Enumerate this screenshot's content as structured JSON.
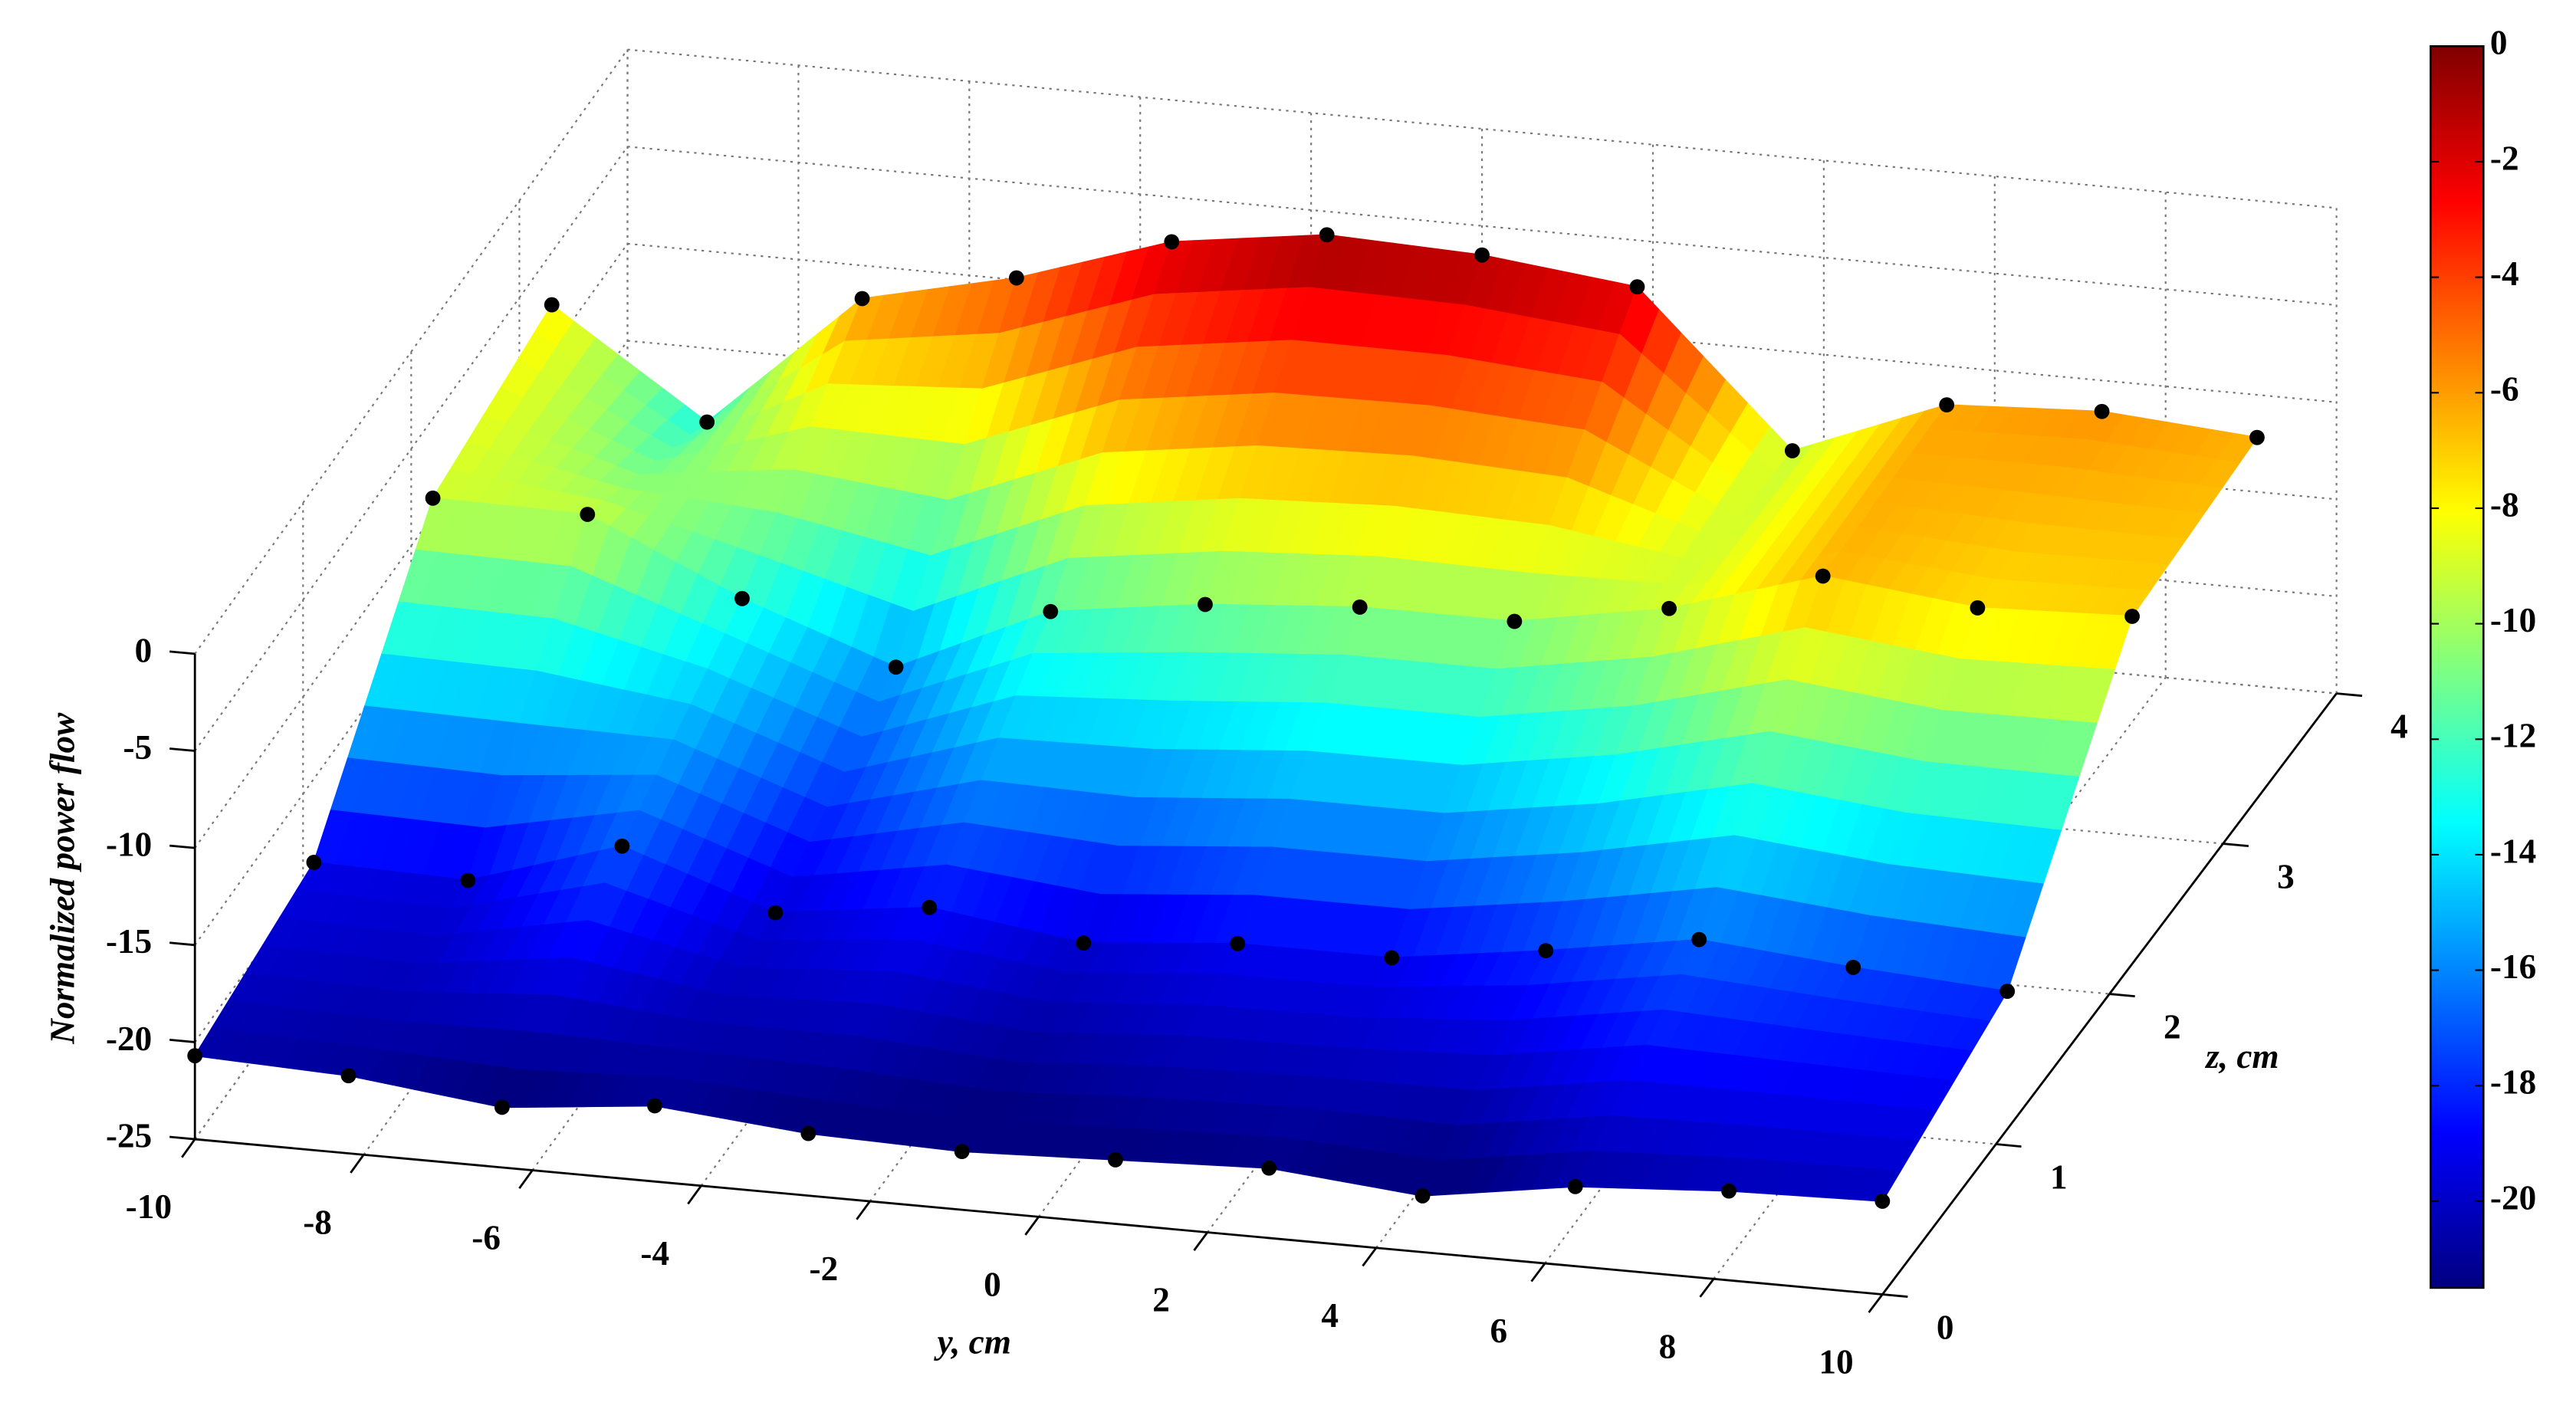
{
  "chart_data": {
    "type": "surface",
    "y_label": "y, cm",
    "z_label": "z, cm",
    "value_label": "Normalized power flow",
    "y": [
      -10,
      -8.18,
      -6.36,
      -4.55,
      -2.73,
      -0.91,
      0.91,
      2.73,
      4.55,
      6.36,
      8.18,
      10
    ],
    "z": [
      0,
      1.1,
      2.2,
      3.3
    ],
    "values": [
      [
        -20.7,
        -21.0,
        -21.9,
        -21.1,
        -21.8,
        -22.0,
        -21.7,
        -21.4,
        -22.1,
        -20.9,
        -20.4,
        -20.2
      ],
      [
        -19.3,
        -19.5,
        -17.0,
        -19.7,
        -18.7,
        -19.8,
        -19.1,
        -19.1,
        -18.0,
        -16.7,
        -17.4,
        -17.9
      ],
      [
        -9.1,
        -9.2,
        -12.8,
        -15.6,
        -12.0,
        -10.9,
        -10.3,
        -10.3,
        -8.9,
        -6.5,
        -7.4,
        -7.1
      ],
      [
        -7.7,
        -13.0,
        -5.9,
        -4.1,
        -1.5,
        -0.4,
        -0.7,
        -1.6,
        -9.3,
        -6.2,
        -5.8,
        -6.4
      ]
    ],
    "ylim": [
      -10,
      10
    ],
    "yticks": [
      -10,
      -8,
      -6,
      -4,
      -2,
      0,
      2,
      4,
      6,
      8,
      10
    ],
    "zlim": [
      0,
      4
    ],
    "zticks": [
      0,
      1,
      2,
      3,
      4
    ],
    "vlim": [
      -25,
      0
    ],
    "vticks": [
      0,
      -5,
      -10,
      -15,
      -20,
      -25
    ],
    "clim": [
      -21.5,
      0
    ],
    "cticks": [
      0,
      -2,
      -4,
      -6,
      -8,
      -10,
      -12,
      -14,
      -16,
      -18,
      -20
    ],
    "colormap": "jet",
    "grid": true,
    "marker_color": "#000000"
  }
}
